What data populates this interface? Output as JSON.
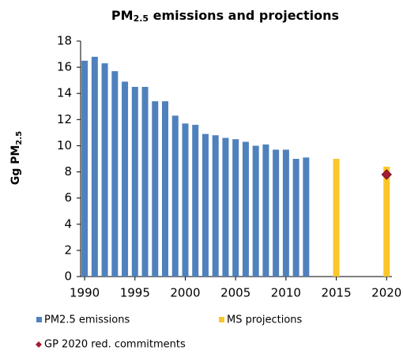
{
  "chart_data": {
    "type": "bar",
    "title": [
      "PM",
      "2.5",
      " emissions and projections"
    ],
    "y_label": [
      "Gg PM",
      "2.5"
    ],
    "xlim": [
      1989.6,
      2021
    ],
    "xticks": [
      1990,
      1995,
      2000,
      2005,
      2010,
      2015,
      2020
    ],
    "ylim": [
      0,
      18
    ],
    "yticks": [
      0,
      2,
      4,
      6,
      8,
      10,
      12,
      14,
      16,
      18
    ],
    "series": [
      {
        "name": "PM2.5 emissions",
        "color": "#4f81bd",
        "mark": "bar",
        "x": [
          1990,
          1991,
          1992,
          1993,
          1994,
          1995,
          1996,
          1997,
          1998,
          1999,
          2000,
          2001,
          2002,
          2003,
          2004,
          2005,
          2006,
          2007,
          2008,
          2009,
          2010,
          2011,
          2012
        ],
        "values": [
          16.5,
          16.8,
          16.3,
          15.7,
          14.9,
          14.5,
          14.5,
          13.4,
          13.4,
          12.3,
          11.7,
          11.6,
          10.9,
          10.8,
          10.6,
          10.5,
          10.3,
          10.0,
          10.1,
          9.7,
          9.7,
          9.0,
          9.1
        ]
      },
      {
        "name": "MS projections",
        "color": "#f9c62b",
        "mark": "bar",
        "x": [
          2015,
          2020
        ],
        "values": [
          9.0,
          8.4
        ]
      },
      {
        "name": "GP 2020 red. commitments",
        "color": "#a31d34",
        "mark": "diamond",
        "x": [
          2020
        ],
        "values": [
          7.8
        ]
      }
    ]
  }
}
